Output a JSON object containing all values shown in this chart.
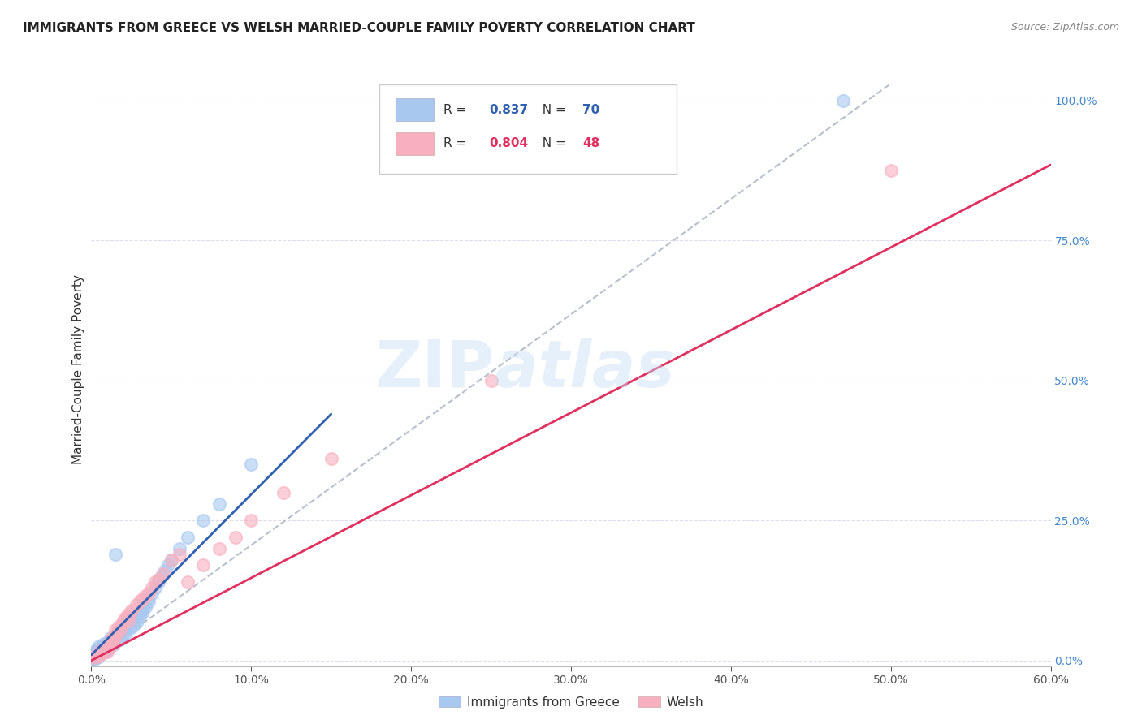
{
  "title": "IMMIGRANTS FROM GREECE VS WELSH MARRIED-COUPLE FAMILY POVERTY CORRELATION CHART",
  "source": "Source: ZipAtlas.com",
  "ylabel": "Married-Couple Family Poverty",
  "watermark": "ZIPatlas",
  "legend_labels": [
    "Immigrants from Greece",
    "Welsh"
  ],
  "R_blue": 0.837,
  "N_blue": 70,
  "R_pink": 0.804,
  "N_pink": 48,
  "blue_color": "#A8C8F0",
  "pink_color": "#F8B0C0",
  "blue_line_color": "#3060B0",
  "pink_line_color": "#E03060",
  "dashed_line_color": "#B0B8C8",
  "xlim": [
    0.0,
    0.6
  ],
  "ylim": [
    -0.01,
    1.05
  ],
  "xtick_vals": [
    0.0,
    0.1,
    0.2,
    0.3,
    0.4,
    0.5,
    0.6
  ],
  "xtick_labels": [
    "0.0%",
    "10.0%",
    "20.0%",
    "30.0%",
    "40.0%",
    "50.0%",
    "60.0%"
  ],
  "ytick_vals": [
    0.0,
    0.25,
    0.5,
    0.75,
    1.0
  ],
  "ytick_labels": [
    "0.0%",
    "25.0%",
    "50.0%",
    "75.0%",
    "100.0%"
  ],
  "blue_scatter": [
    [
      0.001,
      0.005
    ],
    [
      0.001,
      0.008
    ],
    [
      0.001,
      0.003
    ],
    [
      0.001,
      0.006
    ],
    [
      0.002,
      0.01
    ],
    [
      0.002,
      0.005
    ],
    [
      0.002,
      0.008
    ],
    [
      0.002,
      0.012
    ],
    [
      0.002,
      0.003
    ],
    [
      0.003,
      0.015
    ],
    [
      0.003,
      0.008
    ],
    [
      0.003,
      0.005
    ],
    [
      0.003,
      0.018
    ],
    [
      0.004,
      0.01
    ],
    [
      0.004,
      0.02
    ],
    [
      0.004,
      0.005
    ],
    [
      0.005,
      0.015
    ],
    [
      0.005,
      0.025
    ],
    [
      0.005,
      0.008
    ],
    [
      0.006,
      0.02
    ],
    [
      0.006,
      0.012
    ],
    [
      0.007,
      0.025
    ],
    [
      0.007,
      0.015
    ],
    [
      0.008,
      0.02
    ],
    [
      0.008,
      0.03
    ],
    [
      0.009,
      0.025
    ],
    [
      0.009,
      0.015
    ],
    [
      0.01,
      0.03
    ],
    [
      0.01,
      0.02
    ],
    [
      0.011,
      0.035
    ],
    [
      0.011,
      0.022
    ],
    [
      0.012,
      0.04
    ],
    [
      0.012,
      0.025
    ],
    [
      0.013,
      0.035
    ],
    [
      0.014,
      0.04
    ],
    [
      0.014,
      0.028
    ],
    [
      0.015,
      0.19
    ],
    [
      0.016,
      0.045
    ],
    [
      0.017,
      0.05
    ],
    [
      0.018,
      0.038
    ],
    [
      0.019,
      0.042
    ],
    [
      0.02,
      0.055
    ],
    [
      0.021,
      0.048
    ],
    [
      0.022,
      0.06
    ],
    [
      0.023,
      0.065
    ],
    [
      0.024,
      0.058
    ],
    [
      0.025,
      0.07
    ],
    [
      0.026,
      0.062
    ],
    [
      0.027,
      0.075
    ],
    [
      0.028,
      0.068
    ],
    [
      0.03,
      0.08
    ],
    [
      0.031,
      0.09
    ],
    [
      0.032,
      0.085
    ],
    [
      0.033,
      0.1
    ],
    [
      0.034,
      0.095
    ],
    [
      0.035,
      0.11
    ],
    [
      0.036,
      0.105
    ],
    [
      0.038,
      0.12
    ],
    [
      0.04,
      0.13
    ],
    [
      0.042,
      0.14
    ],
    [
      0.044,
      0.15
    ],
    [
      0.046,
      0.16
    ],
    [
      0.048,
      0.17
    ],
    [
      0.05,
      0.18
    ],
    [
      0.055,
      0.2
    ],
    [
      0.06,
      0.22
    ],
    [
      0.07,
      0.25
    ],
    [
      0.08,
      0.28
    ],
    [
      0.1,
      0.35
    ],
    [
      0.47,
      1.0
    ]
  ],
  "pink_scatter": [
    [
      0.002,
      0.005
    ],
    [
      0.003,
      0.008
    ],
    [
      0.004,
      0.01
    ],
    [
      0.005,
      0.008
    ],
    [
      0.005,
      0.015
    ],
    [
      0.006,
      0.012
    ],
    [
      0.007,
      0.018
    ],
    [
      0.008,
      0.015
    ],
    [
      0.009,
      0.02
    ],
    [
      0.01,
      0.025
    ],
    [
      0.01,
      0.015
    ],
    [
      0.011,
      0.03
    ],
    [
      0.012,
      0.025
    ],
    [
      0.012,
      0.035
    ],
    [
      0.013,
      0.04
    ],
    [
      0.014,
      0.035
    ],
    [
      0.015,
      0.045
    ],
    [
      0.015,
      0.055
    ],
    [
      0.016,
      0.05
    ],
    [
      0.017,
      0.06
    ],
    [
      0.018,
      0.055
    ],
    [
      0.019,
      0.065
    ],
    [
      0.02,
      0.07
    ],
    [
      0.021,
      0.075
    ],
    [
      0.022,
      0.08
    ],
    [
      0.023,
      0.07
    ],
    [
      0.024,
      0.085
    ],
    [
      0.025,
      0.09
    ],
    [
      0.028,
      0.1
    ],
    [
      0.03,
      0.105
    ],
    [
      0.032,
      0.11
    ],
    [
      0.034,
      0.115
    ],
    [
      0.036,
      0.12
    ],
    [
      0.038,
      0.13
    ],
    [
      0.04,
      0.14
    ],
    [
      0.042,
      0.145
    ],
    [
      0.045,
      0.155
    ],
    [
      0.05,
      0.18
    ],
    [
      0.055,
      0.19
    ],
    [
      0.06,
      0.14
    ],
    [
      0.07,
      0.17
    ],
    [
      0.08,
      0.2
    ],
    [
      0.09,
      0.22
    ],
    [
      0.1,
      0.25
    ],
    [
      0.12,
      0.3
    ],
    [
      0.15,
      0.36
    ],
    [
      0.25,
      0.5
    ],
    [
      0.5,
      0.875
    ]
  ],
  "blue_trendline_x": [
    0.0,
    0.15
  ],
  "blue_trendline_y": [
    0.01,
    0.44
  ],
  "pink_trendline_x": [
    0.0,
    0.6
  ],
  "pink_trendline_y": [
    0.0,
    0.885
  ],
  "dashed_trendline_x": [
    0.0,
    0.5
  ],
  "dashed_trendline_y": [
    0.0,
    1.03
  ]
}
